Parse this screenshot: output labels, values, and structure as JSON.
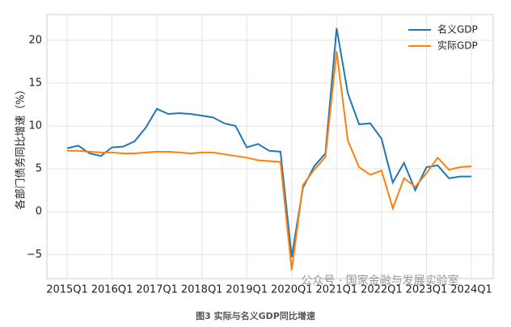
{
  "chart_data": {
    "type": "line",
    "ylabel": "各部门债务同比增速（%）",
    "caption": "图3  实际与名义GDP同比增速",
    "watermark": "公众号 · 国家金融与发展实验室",
    "categories": [
      "2015Q1",
      null,
      null,
      null,
      "2016Q1",
      null,
      null,
      null,
      "2017Q1",
      null,
      null,
      null,
      "2018Q1",
      null,
      null,
      null,
      "2019Q1",
      null,
      null,
      null,
      "2020Q1",
      null,
      null,
      null,
      "2021Q1",
      null,
      null,
      null,
      "2022Q1",
      null,
      null,
      null,
      "2023Q1",
      null,
      null,
      null,
      "2024Q1"
    ],
    "series": [
      {
        "name": "名义GDP",
        "color": "#1f77b4",
        "values": [
          7.4,
          7.7,
          6.8,
          6.5,
          7.5,
          7.6,
          8.2,
          9.8,
          12.0,
          11.4,
          11.5,
          11.4,
          11.2,
          11.0,
          10.3,
          10.0,
          7.5,
          7.9,
          7.1,
          7.0,
          -5.3,
          2.8,
          5.3,
          6.8,
          21.4,
          13.8,
          10.2,
          10.3,
          8.5,
          3.4,
          5.7,
          2.5,
          5.2,
          5.4,
          3.9,
          4.1,
          4.1
        ]
      },
      {
        "name": "实际GDP",
        "color": "#ff7f0e",
        "values": [
          7.1,
          7.1,
          7.0,
          6.9,
          6.9,
          6.8,
          6.8,
          6.9,
          7.0,
          7.0,
          6.9,
          6.8,
          6.9,
          6.9,
          6.7,
          6.5,
          6.3,
          6.0,
          5.9,
          5.8,
          -6.8,
          3.1,
          4.9,
          6.4,
          18.7,
          8.3,
          5.2,
          4.3,
          4.8,
          0.4,
          3.9,
          2.9,
          4.5,
          6.3,
          4.9,
          5.2,
          5.3
        ]
      }
    ],
    "ylim": [
      -7.8,
      23
    ],
    "yticks": [
      {
        "value": -5,
        "label": "−5"
      },
      0,
      5,
      10,
      15,
      20
    ],
    "grid": true,
    "legend": "upper right"
  }
}
